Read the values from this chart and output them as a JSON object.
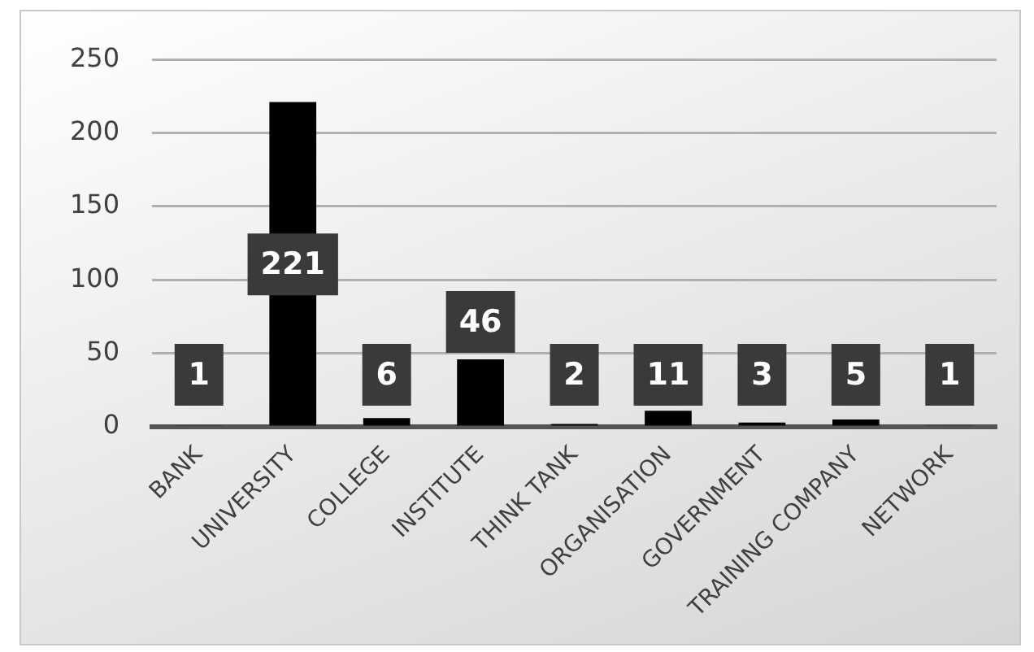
{
  "chart_data": {
    "type": "bar",
    "categories": [
      "BANK",
      "UNIVERSITY",
      "COLLEGE",
      "INSTITUTE",
      "THINK TANK",
      "ORGANISATION",
      "GOVERNMENT",
      "TRAINING COMPANY",
      "NETWORK"
    ],
    "values": [
      1,
      221,
      6,
      46,
      2,
      11,
      3,
      5,
      1
    ],
    "color": "#000000",
    "ylim": [
      0,
      250
    ],
    "yticks": [
      0,
      50,
      100,
      150,
      200,
      250
    ],
    "grid": "y",
    "data_labels": true
  }
}
